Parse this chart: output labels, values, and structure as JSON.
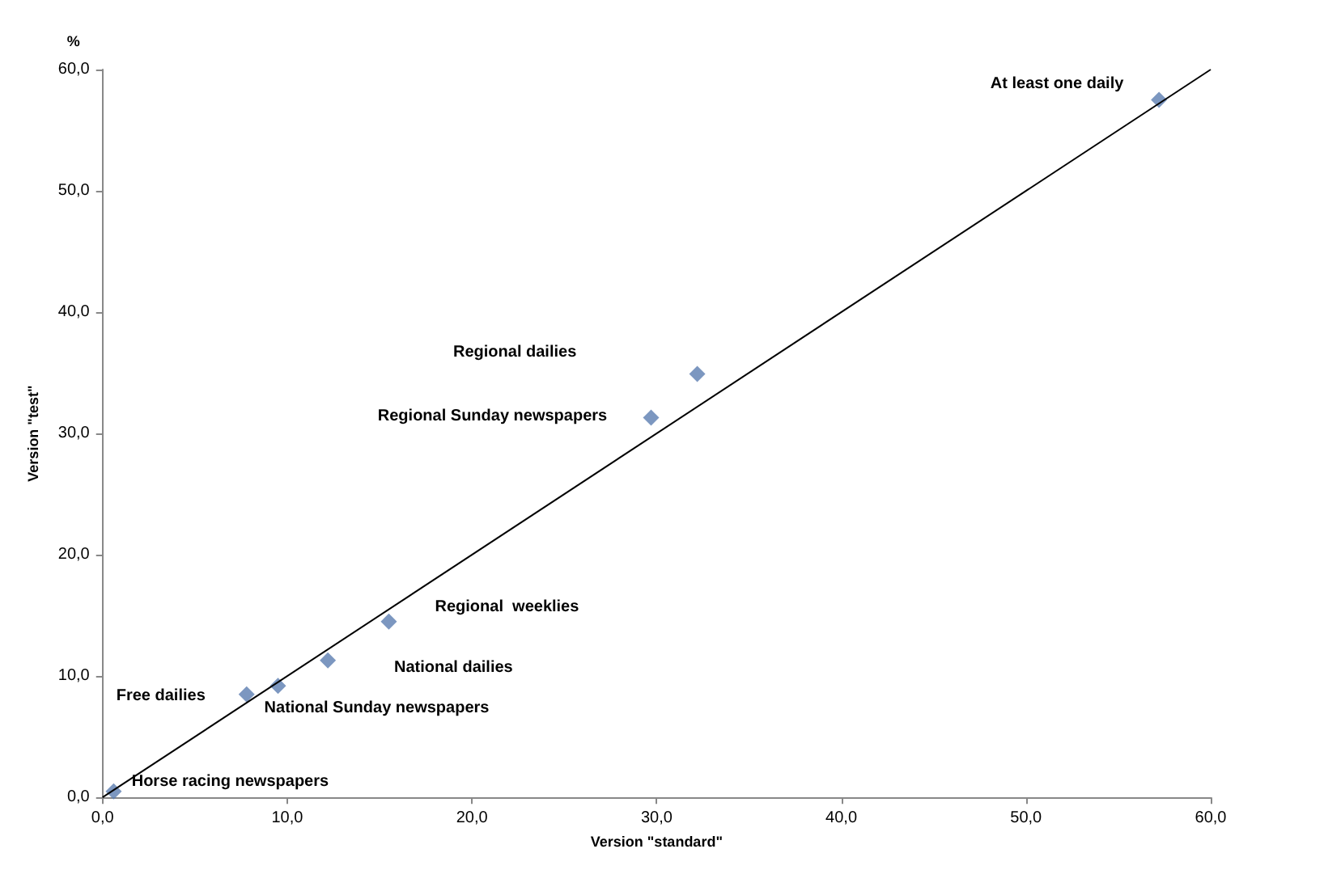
{
  "chart_data": {
    "type": "scatter",
    "xlabel": "Version \"standard\"",
    "ylabel": "Version \"test\"",
    "xlim": [
      0,
      60
    ],
    "ylim": [
      0,
      60
    ],
    "xticks": [
      {
        "value": 0,
        "label": "0,0"
      },
      {
        "value": 10,
        "label": "10,0"
      },
      {
        "value": 20,
        "label": "20,0"
      },
      {
        "value": 30,
        "label": "30,0"
      },
      {
        "value": 40,
        "label": "40,0"
      },
      {
        "value": 50,
        "label": "50,0"
      },
      {
        "value": 60,
        "label": "60,0"
      }
    ],
    "yticks": [
      {
        "value": 0,
        "label": "0,0"
      },
      {
        "value": 10,
        "label": "10,0"
      },
      {
        "value": 20,
        "label": "20,0"
      },
      {
        "value": 30,
        "label": "30,0"
      },
      {
        "value": 40,
        "label": "40,0"
      },
      {
        "value": 50,
        "label": "50,0"
      },
      {
        "value": 60,
        "label": "60,0"
      }
    ],
    "grid": false,
    "marker": "diamond",
    "series": [
      {
        "color": "#5b7db0",
        "x": [
          0.6,
          7.8,
          9.5,
          12.2,
          15.5,
          29.7,
          32.2,
          57.2
        ],
        "values": [
          0.5,
          8.5,
          9.2,
          11.3,
          14.5,
          31.3,
          34.9,
          57.5
        ]
      },
      {
        "type": "line",
        "color": "#000000",
        "x": [
          0,
          60
        ],
        "values": [
          0,
          60
        ],
        "marker": "none"
      }
    ],
    "annotations": [
      "%",
      {
        "text": "At least one daily",
        "x": 57.2,
        "y": 57.5
      },
      "Regional dailies",
      {
        "text": "Regional Sunday newspapers",
        "x": 29.7,
        "y": 31.3
      },
      {
        "text": "Regional  weeklies",
        "x": 15.5,
        "y": 14.5
      },
      "National dailies",
      {
        "text": "Free dailies",
        "x": 7.8,
        "y": 8.5
      },
      {
        "text": "National Sunday newspapers",
        "x": 9.5,
        "y": 9.2
      },
      {
        "text": "Horse racing newspapers",
        "x": 0.6,
        "y": 0.5
      }
    ]
  }
}
